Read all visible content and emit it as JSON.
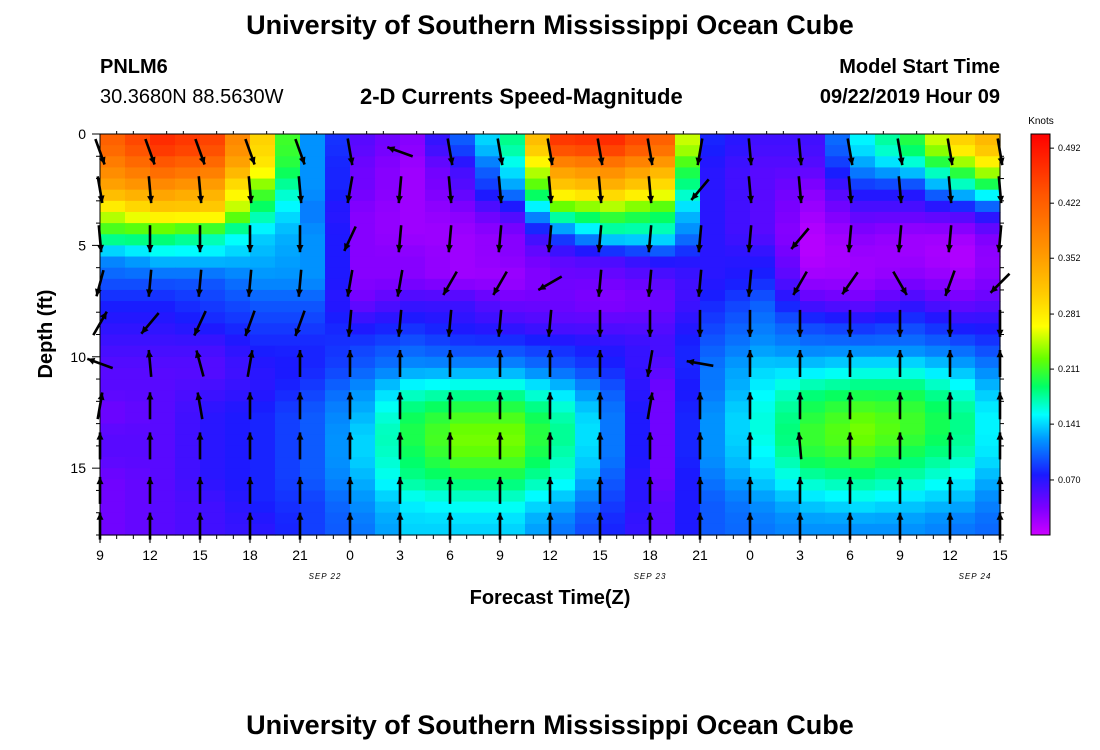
{
  "header": {
    "title": "University of Southern Mississippi Ocean Cube",
    "station": "PNLM6",
    "coords": "30.3680N 88.5630W",
    "subtitle": "2-D Currents Speed-Magnitude",
    "model_start_label": "Model Start Time",
    "model_start_value": "09/22/2019 Hour 09"
  },
  "footer": {
    "title": "University of Southern Mississippi Ocean Cube"
  },
  "chart_data": {
    "type": "heatmap",
    "title": "2-D Currents Speed-Magnitude",
    "xlabel": "Forecast Time(Z)",
    "ylabel": "Depth (ft)",
    "x_tick_labels": [
      "9",
      "12",
      "15",
      "18",
      "21",
      "0",
      "3",
      "6",
      "9",
      "12",
      "15",
      "18",
      "21",
      "0",
      "3",
      "6",
      "9",
      "12",
      "15"
    ],
    "date_labels": [
      "SEP 22",
      "SEP 23",
      "SEP 24"
    ],
    "x_range_hours": [
      0,
      54
    ],
    "y_ticks": [
      0,
      5,
      10,
      15
    ],
    "ylim": [
      0,
      18
    ],
    "colorbar": {
      "title": "Knots",
      "tick_labels": [
        "0.492",
        "0.422",
        "0.352",
        "0.281",
        "0.211",
        "0.141",
        "0.070"
      ],
      "tick_values": [
        0.492,
        0.422,
        0.352,
        0.281,
        0.211,
        0.141,
        0.07
      ],
      "range": [
        0,
        0.51
      ]
    },
    "depth_rows": [
      0.5,
      1.5,
      2.5,
      3.5,
      4.5,
      5.5,
      6.5,
      7.5,
      8.5,
      9.5,
      10.5,
      11.5,
      12.5,
      13.5,
      14.5,
      15.5,
      16.5,
      17.5
    ],
    "time_cols_hours": [
      0,
      3,
      6,
      9,
      12,
      15,
      18,
      21,
      24,
      27,
      30,
      33,
      36,
      39,
      42,
      45,
      48,
      51,
      54
    ],
    "speed_knots": [
      [
        0.42,
        0.47,
        0.45,
        0.3,
        0.12,
        0.05,
        0.03,
        0.1,
        0.18,
        0.46,
        0.47,
        0.42,
        0.08,
        0.06,
        0.06,
        0.15,
        0.2,
        0.3,
        0.35
      ],
      [
        0.38,
        0.42,
        0.4,
        0.28,
        0.12,
        0.04,
        0.02,
        0.06,
        0.15,
        0.36,
        0.38,
        0.34,
        0.07,
        0.05,
        0.05,
        0.12,
        0.15,
        0.22,
        0.3
      ],
      [
        0.34,
        0.36,
        0.34,
        0.22,
        0.12,
        0.04,
        0.02,
        0.05,
        0.12,
        0.3,
        0.32,
        0.28,
        0.07,
        0.05,
        0.03,
        0.08,
        0.08,
        0.15,
        0.2
      ],
      [
        0.26,
        0.3,
        0.3,
        0.18,
        0.11,
        0.03,
        0.02,
        0.03,
        0.06,
        0.2,
        0.22,
        0.2,
        0.07,
        0.05,
        0.02,
        0.05,
        0.05,
        0.06,
        0.1
      ],
      [
        0.2,
        0.2,
        0.18,
        0.14,
        0.12,
        0.03,
        0.02,
        0.02,
        0.03,
        0.1,
        0.16,
        0.16,
        0.07,
        0.05,
        0.01,
        0.03,
        0.02,
        0.02,
        0.05
      ],
      [
        0.12,
        0.14,
        0.14,
        0.13,
        0.12,
        0.03,
        0.03,
        0.02,
        0.03,
        0.05,
        0.06,
        0.08,
        0.07,
        0.07,
        0.01,
        0.02,
        0.02,
        0.01,
        0.04
      ],
      [
        0.1,
        0.1,
        0.1,
        0.12,
        0.12,
        0.03,
        0.03,
        0.02,
        0.02,
        0.04,
        0.04,
        0.05,
        0.07,
        0.08,
        0.02,
        0.02,
        0.03,
        0.02,
        0.04
      ],
      [
        0.08,
        0.08,
        0.09,
        0.1,
        0.1,
        0.04,
        0.06,
        0.06,
        0.04,
        0.04,
        0.03,
        0.04,
        0.08,
        0.1,
        0.05,
        0.04,
        0.06,
        0.04,
        0.05
      ],
      [
        0.07,
        0.07,
        0.08,
        0.09,
        0.09,
        0.07,
        0.08,
        0.07,
        0.06,
        0.05,
        0.05,
        0.05,
        0.09,
        0.11,
        0.09,
        0.08,
        0.09,
        0.07,
        0.07
      ],
      [
        0.06,
        0.06,
        0.06,
        0.08,
        0.08,
        0.09,
        0.1,
        0.09,
        0.09,
        0.08,
        0.07,
        0.06,
        0.1,
        0.12,
        0.11,
        0.11,
        0.11,
        0.1,
        0.08
      ],
      [
        0.05,
        0.05,
        0.05,
        0.07,
        0.08,
        0.1,
        0.12,
        0.12,
        0.12,
        0.1,
        0.08,
        0.05,
        0.11,
        0.14,
        0.14,
        0.15,
        0.15,
        0.13,
        0.1
      ],
      [
        0.05,
        0.05,
        0.06,
        0.07,
        0.09,
        0.12,
        0.16,
        0.17,
        0.17,
        0.14,
        0.1,
        0.04,
        0.11,
        0.15,
        0.18,
        0.19,
        0.19,
        0.16,
        0.11
      ],
      [
        0.04,
        0.05,
        0.07,
        0.08,
        0.1,
        0.13,
        0.19,
        0.21,
        0.21,
        0.17,
        0.11,
        0.04,
        0.12,
        0.16,
        0.2,
        0.22,
        0.21,
        0.18,
        0.12
      ],
      [
        0.05,
        0.05,
        0.07,
        0.08,
        0.1,
        0.14,
        0.2,
        0.23,
        0.23,
        0.18,
        0.11,
        0.04,
        0.12,
        0.16,
        0.21,
        0.23,
        0.21,
        0.18,
        0.12
      ],
      [
        0.05,
        0.05,
        0.07,
        0.08,
        0.1,
        0.14,
        0.19,
        0.22,
        0.22,
        0.17,
        0.11,
        0.04,
        0.12,
        0.15,
        0.2,
        0.21,
        0.19,
        0.17,
        0.12
      ],
      [
        0.04,
        0.05,
        0.07,
        0.08,
        0.1,
        0.13,
        0.18,
        0.19,
        0.19,
        0.16,
        0.1,
        0.04,
        0.11,
        0.14,
        0.17,
        0.18,
        0.17,
        0.15,
        0.11
      ],
      [
        0.04,
        0.05,
        0.06,
        0.08,
        0.09,
        0.12,
        0.15,
        0.16,
        0.16,
        0.13,
        0.09,
        0.05,
        0.1,
        0.12,
        0.14,
        0.15,
        0.14,
        0.13,
        0.1
      ],
      [
        0.04,
        0.05,
        0.06,
        0.07,
        0.09,
        0.11,
        0.14,
        0.14,
        0.14,
        0.11,
        0.08,
        0.05,
        0.1,
        0.11,
        0.12,
        0.12,
        0.12,
        0.11,
        0.1
      ]
    ],
    "vector_time_hours": [
      0,
      3,
      6,
      9,
      12,
      15,
      18,
      21,
      24,
      27,
      30,
      33,
      36,
      39,
      42,
      45,
      48,
      51,
      54
    ],
    "vector_depth_ft": [
      0.8,
      2.5,
      4.7,
      6.7,
      8.5,
      10.3,
      12.2,
      14.0,
      16.0,
      17.6
    ],
    "vector_angle_deg": [
      [
        70,
        70,
        70,
        70,
        70,
        80,
        200,
        80,
        80,
        80,
        80,
        80,
        100,
        85,
        85,
        80,
        80,
        80,
        80
      ],
      [
        80,
        85,
        85,
        85,
        85,
        100,
        95,
        85,
        85,
        85,
        85,
        85,
        130,
        85,
        85,
        85,
        85,
        85,
        85
      ],
      [
        85,
        90,
        90,
        90,
        90,
        115,
        95,
        95,
        95,
        95,
        95,
        95,
        95,
        95,
        130,
        95,
        95,
        95,
        95
      ],
      [
        105,
        95,
        95,
        95,
        95,
        100,
        100,
        120,
        120,
        150,
        95,
        95,
        95,
        95,
        120,
        125,
        60,
        110,
        135
      ],
      [
        -60,
        130,
        115,
        110,
        110,
        95,
        95,
        95,
        95,
        95,
        90,
        90,
        90,
        90,
        90,
        90,
        90,
        90,
        90
      ],
      [
        200,
        -95,
        -105,
        -80,
        -90,
        -90,
        -90,
        -90,
        -90,
        -90,
        -90,
        100,
        190,
        -90,
        -90,
        -90,
        -90,
        -90,
        -90
      ],
      [
        -80,
        -90,
        -100,
        -90,
        -90,
        -90,
        -90,
        -90,
        -90,
        -90,
        -90,
        -80,
        -90,
        -90,
        -90,
        -90,
        -90,
        -90,
        -90
      ],
      [
        -90,
        -90,
        -90,
        -90,
        -90,
        -90,
        -90,
        -90,
        -90,
        -90,
        -90,
        -90,
        -90,
        -90,
        -95,
        -90,
        -90,
        -90,
        -90
      ],
      [
        -90,
        -90,
        -90,
        -90,
        -90,
        -90,
        -90,
        -90,
        -90,
        -90,
        -90,
        -90,
        -90,
        -90,
        -90,
        -90,
        -90,
        -90,
        -90
      ],
      [
        -90,
        -90,
        -90,
        -90,
        -90,
        -90,
        -90,
        -90,
        -90,
        -90,
        -90,
        -90,
        -90,
        -90,
        -90,
        -90,
        -90,
        -90,
        -90
      ]
    ]
  }
}
